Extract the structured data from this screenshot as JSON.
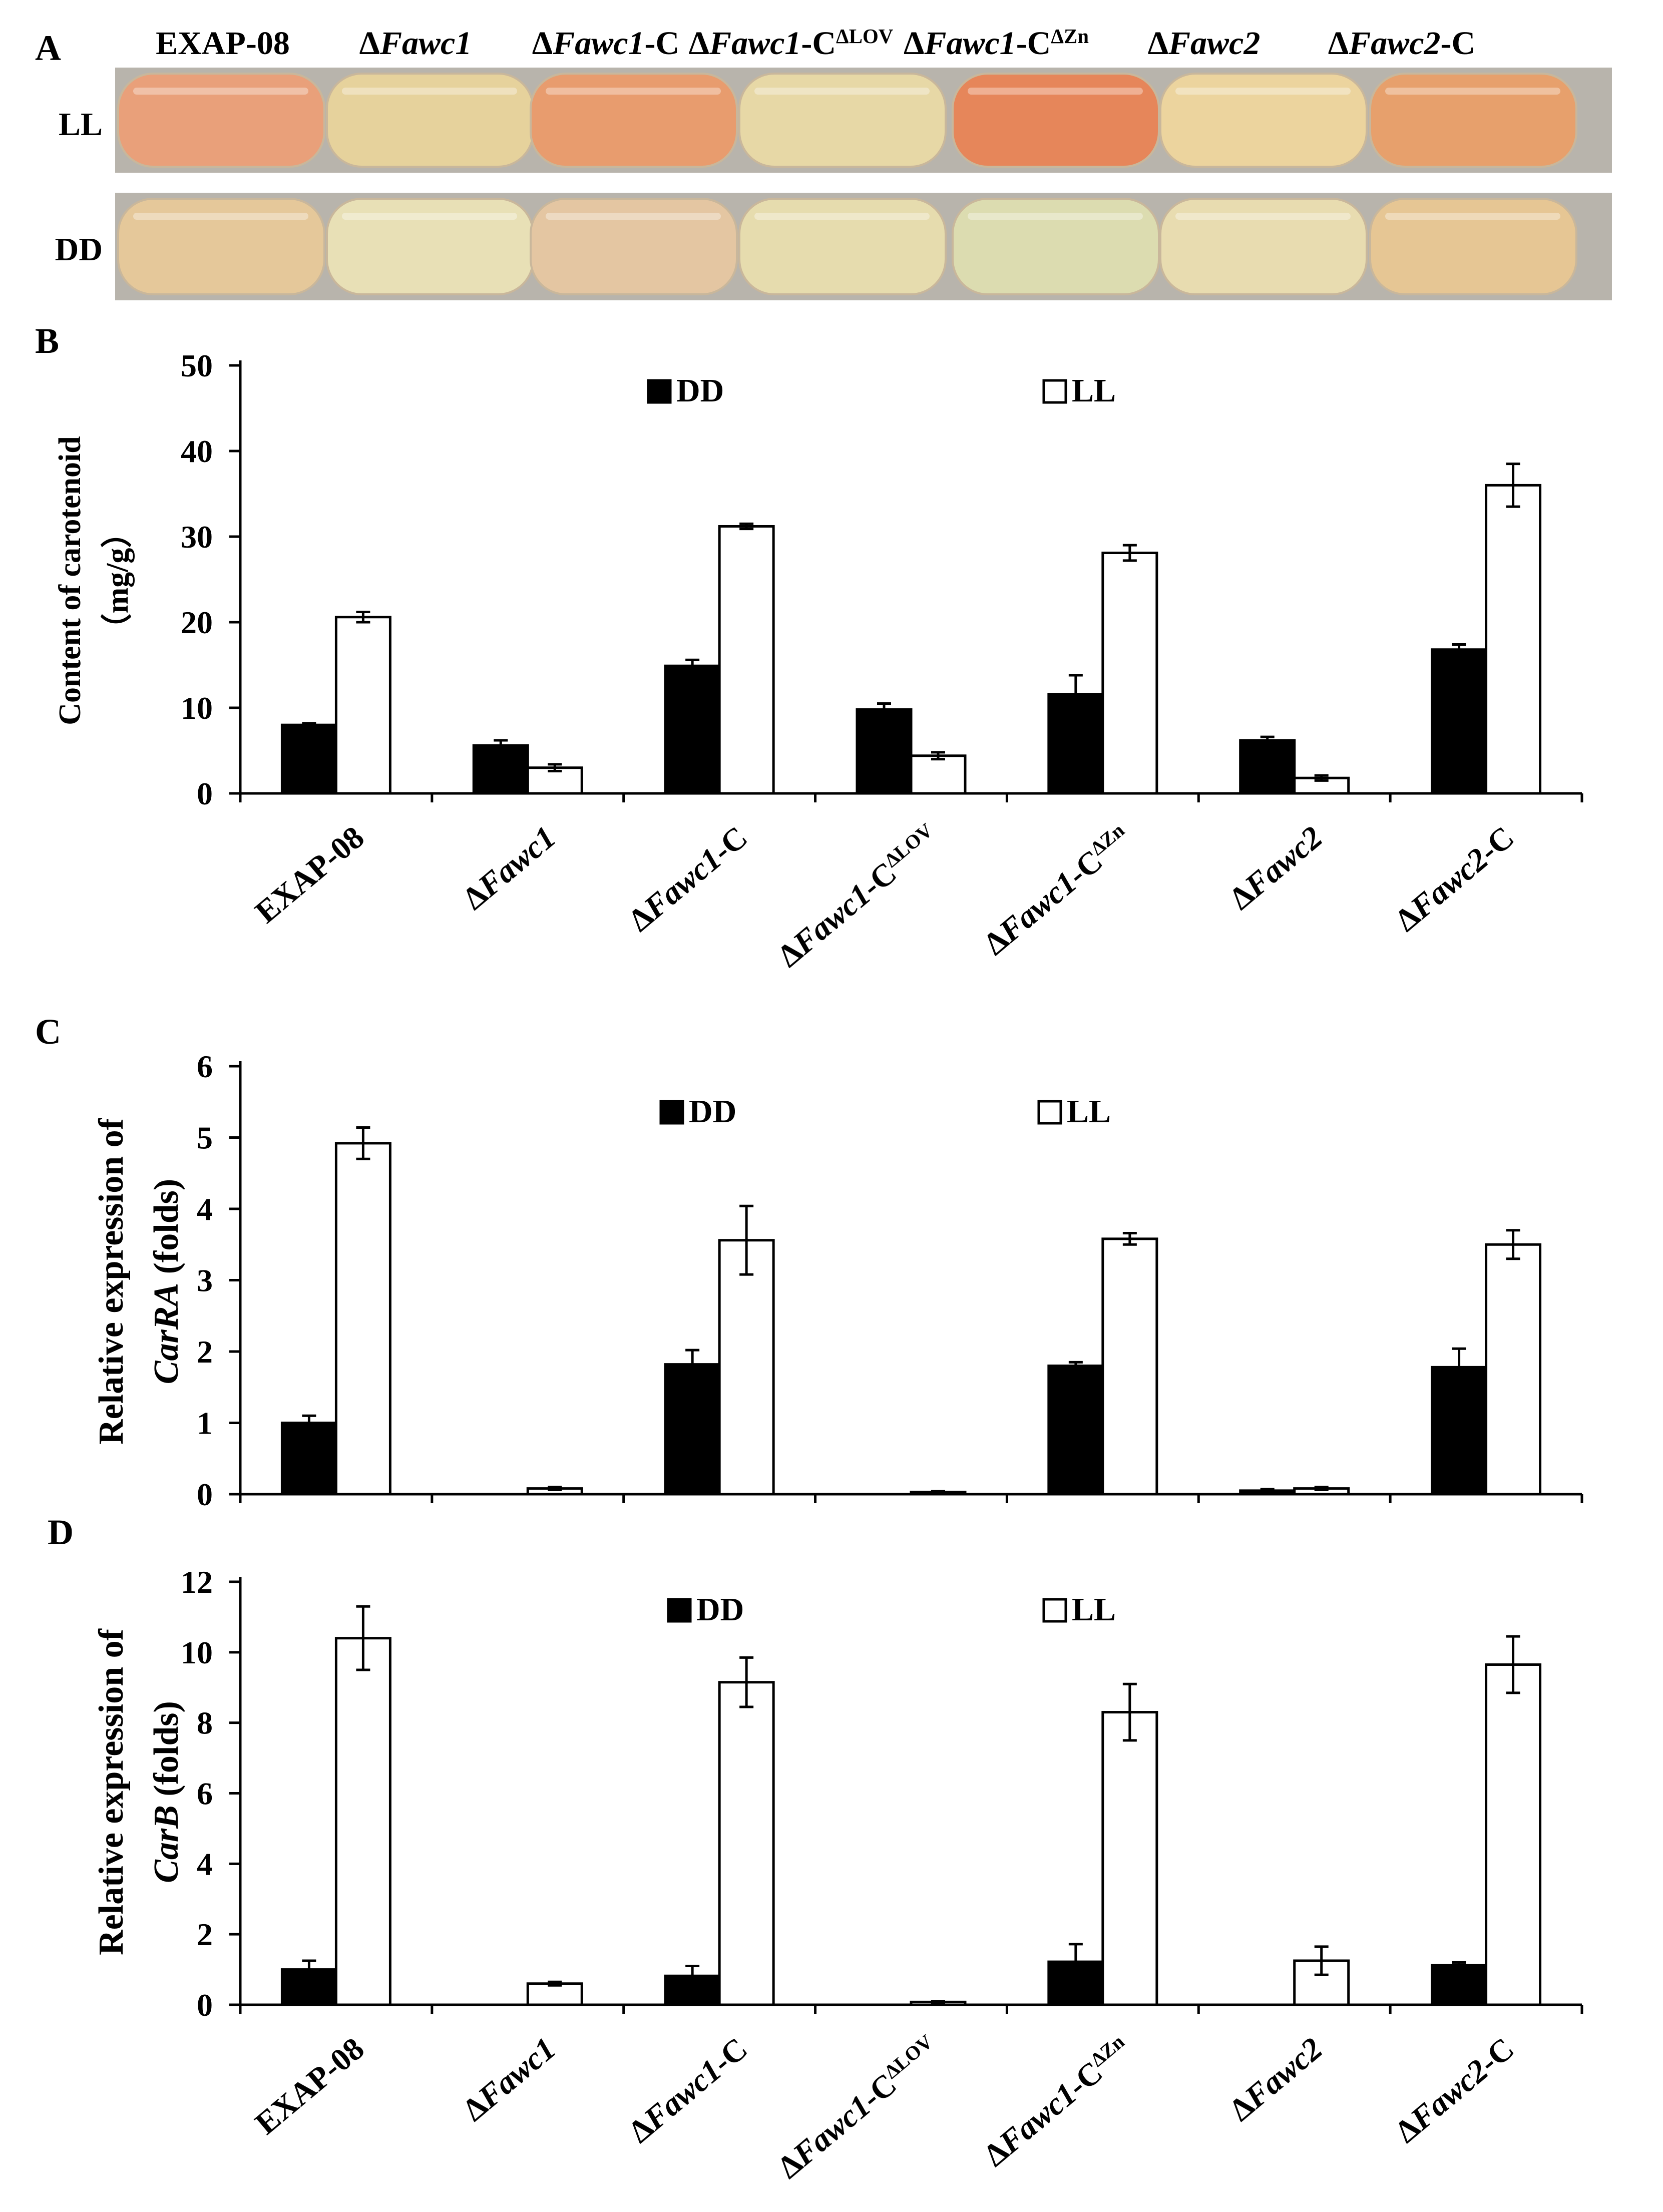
{
  "panel_a": {
    "letter": "A",
    "strains": [
      "EXAP-08",
      "ΔFawc1",
      "ΔFawc1-C",
      "ΔFawc1-CΔLOV",
      "ΔFawc1-CΔZn",
      "ΔFawc2",
      "ΔFawc2-C"
    ],
    "rows": [
      {
        "label": "LL",
        "colors": [
          "#e9a07a",
          "#e6d29c",
          "#e89c6e",
          "#e7d8a6",
          "#e6865a",
          "#ecd49e",
          "#e7a06c"
        ]
      },
      {
        "label": "DD",
        "colors": [
          "#e5c89a",
          "#e8e0b6",
          "#e4c6a2",
          "#e6dcae",
          "#dcdcb0",
          "#e8dcb0",
          "#e6c694"
        ]
      }
    ]
  },
  "chart_data": [
    {
      "panel": "B",
      "type": "bar",
      "categories": [
        "EXAP-08",
        "ΔFawc1",
        "ΔFawc1-C",
        "ΔFawc1-CΔLOV",
        "ΔFawc1-CΔZn",
        "ΔFawc2",
        "ΔFawc2-C"
      ],
      "series": [
        {
          "name": "DD",
          "color": "#000000",
          "values": [
            8.0,
            5.6,
            14.9,
            9.8,
            11.6,
            6.2,
            16.8
          ],
          "errors": [
            0.2,
            0.6,
            0.7,
            0.7,
            2.2,
            0.4,
            0.6
          ]
        },
        {
          "name": "LL",
          "color": "#ffffff",
          "values": [
            20.6,
            3.0,
            31.2,
            4.4,
            28.1,
            1.8,
            36.0
          ],
          "errors": [
            0.6,
            0.4,
            0.3,
            0.4,
            0.9,
            0.3,
            2.5
          ]
        }
      ],
      "ylabel_lines": [
        "Content of carotenoid",
        "（mg/g）"
      ],
      "ylim": [
        0,
        50
      ],
      "yticks": [
        0,
        10,
        20,
        30,
        40,
        50
      ],
      "legend": "top",
      "grid": false
    },
    {
      "panel": "C",
      "type": "bar",
      "categories": [
        "EXAP-08",
        "ΔFawc1",
        "ΔFawc1-C",
        "ΔFawc1-CΔLOV",
        "ΔFawc1-CΔZn",
        "ΔFawc2",
        "ΔFawc2-C"
      ],
      "series": [
        {
          "name": "DD",
          "color": "#000000",
          "values": [
            1.0,
            0.0,
            1.82,
            0.0,
            1.8,
            0.05,
            1.78
          ],
          "errors": [
            0.1,
            0.0,
            0.2,
            0.0,
            0.05,
            0.02,
            0.26
          ]
        },
        {
          "name": "LL",
          "color": "#ffffff",
          "values": [
            4.92,
            0.08,
            3.56,
            0.03,
            3.58,
            0.08,
            3.5
          ],
          "errors": [
            0.22,
            0.02,
            0.48,
            0.01,
            0.08,
            0.02,
            0.2
          ]
        }
      ],
      "ylabel_lines": [
        "Relative expression of",
        "CarRA (folds)"
      ],
      "ylim": [
        0,
        6
      ],
      "yticks": [
        0,
        1,
        2,
        3,
        4,
        5,
        6
      ],
      "legend": "top",
      "grid": false
    },
    {
      "panel": "D",
      "type": "bar",
      "categories": [
        "EXAP-08",
        "ΔFawc1",
        "ΔFawc1-C",
        "ΔFawc1-CΔLOV",
        "ΔFawc1-CΔZn",
        "ΔFawc2",
        "ΔFawc2-C"
      ],
      "series": [
        {
          "name": "DD",
          "color": "#000000",
          "values": [
            1.0,
            0.0,
            0.82,
            0.0,
            1.22,
            0.0,
            1.12
          ],
          "errors": [
            0.25,
            0.0,
            0.28,
            0.0,
            0.5,
            0.0,
            0.08
          ]
        },
        {
          "name": "LL",
          "color": "#ffffff",
          "values": [
            10.4,
            0.6,
            9.15,
            0.08,
            8.3,
            1.25,
            9.65
          ],
          "errors": [
            0.9,
            0.05,
            0.7,
            0.02,
            0.8,
            0.4,
            0.8
          ]
        }
      ],
      "ylabel_lines": [
        "Relative expression of",
        "CarB (folds)"
      ],
      "ylim": [
        0,
        12
      ],
      "yticks": [
        0,
        2,
        4,
        6,
        8,
        10,
        12
      ],
      "legend": "top",
      "grid": false
    }
  ]
}
